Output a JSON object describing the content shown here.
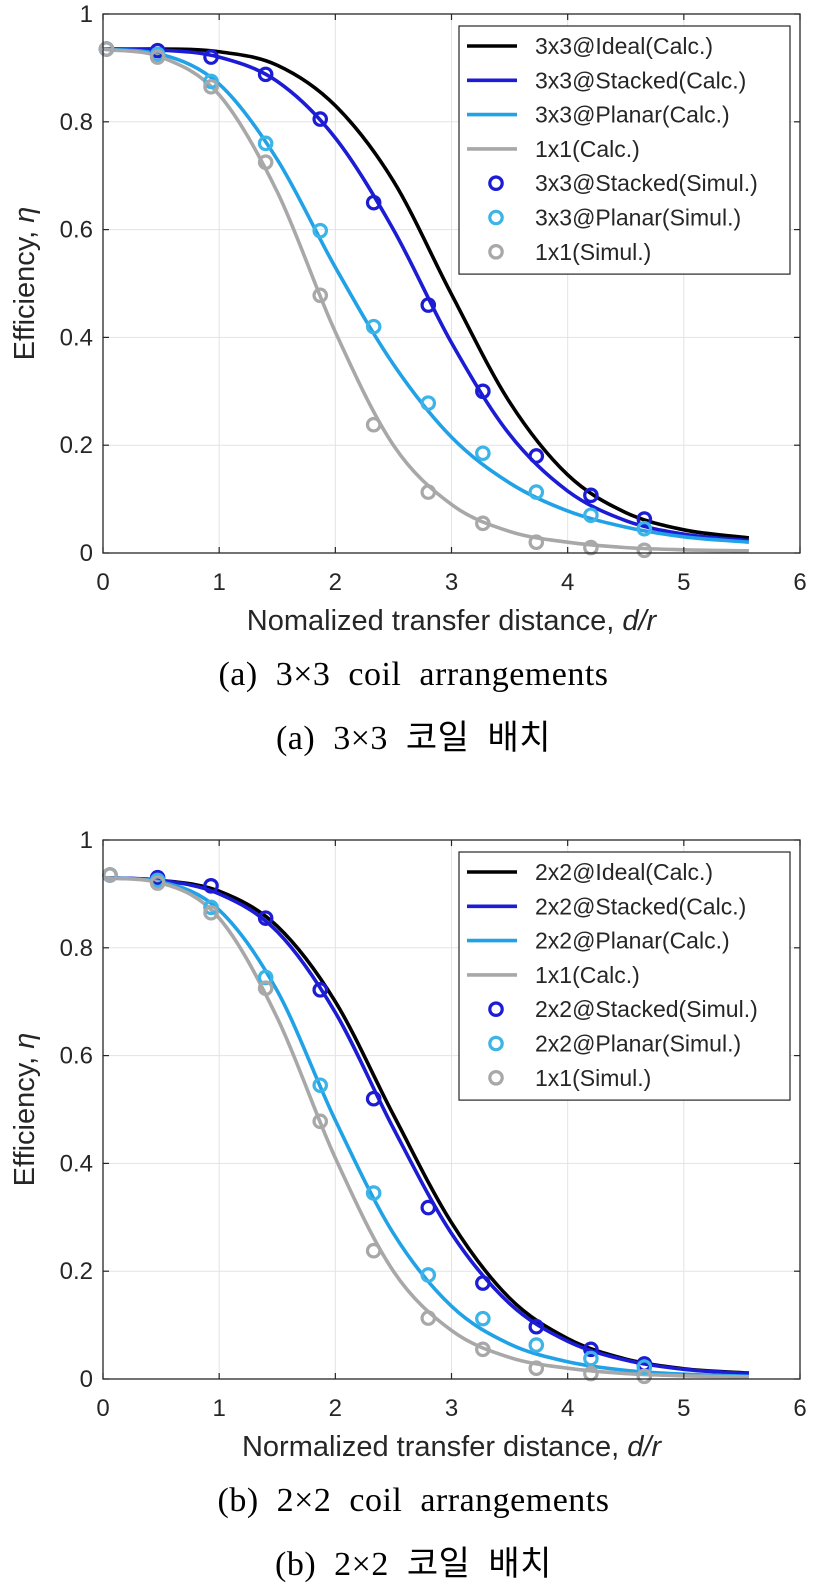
{
  "figures": [
    {
      "caption_en": "(a)  3×3  coil  arrangements",
      "caption_ko": "(a)  3×3  코일  배치",
      "chart_data": {
        "type": "line",
        "xlabel": "Nomalized transfer distance, ",
        "xlabel_italic": "d/r",
        "ylabel": "Efficiency, ",
        "ylabel_italic": "η",
        "xlim": [
          0,
          6
        ],
        "ylim": [
          0,
          1
        ],
        "xticks": [
          0,
          1,
          2,
          3,
          4,
          5,
          6
        ],
        "yticks": [
          0,
          0.2,
          0.4,
          0.6,
          0.8,
          1
        ],
        "ytick_labels": [
          "0",
          "0.2",
          "0.4",
          "0.6",
          "0.8",
          "1"
        ],
        "grid": true,
        "legend_position": "top-right",
        "series": [
          {
            "name": "3x3@Ideal(Calc.)",
            "kind": "line",
            "color": "#000000",
            "x": [
              0,
              0.5,
              1,
              1.5,
              2,
              2.5,
              3,
              3.5,
              4,
              4.5,
              5,
              5.56
            ],
            "y": [
              0.935,
              0.935,
              0.93,
              0.905,
              0.83,
              0.69,
              0.48,
              0.28,
              0.145,
              0.075,
              0.043,
              0.028
            ]
          },
          {
            "name": "3x3@Stacked(Calc.)",
            "kind": "line",
            "color": "#1c1cd4",
            "x": [
              0,
              0.5,
              1,
              1.5,
              2,
              2.5,
              3,
              3.5,
              4,
              4.5,
              5,
              5.56
            ],
            "y": [
              0.935,
              0.933,
              0.92,
              0.875,
              0.77,
              0.6,
              0.39,
              0.22,
              0.115,
              0.06,
              0.035,
              0.023
            ]
          },
          {
            "name": "3x3@Planar(Calc.)",
            "kind": "line",
            "color": "#22a2e6",
            "x": [
              0,
              0.5,
              1,
              1.5,
              2,
              2.5,
              3,
              3.5,
              4,
              4.5,
              5,
              5.56
            ],
            "y": [
              0.935,
              0.925,
              0.87,
              0.73,
              0.53,
              0.35,
              0.215,
              0.13,
              0.078,
              0.048,
              0.03,
              0.02
            ]
          },
          {
            "name": "1x1(Calc.)",
            "kind": "line",
            "color": "#a8a8a8",
            "x": [
              0,
              0.5,
              1,
              1.5,
              2,
              2.5,
              3,
              3.5,
              4,
              4.5,
              5,
              5.56
            ],
            "y": [
              0.935,
              0.92,
              0.85,
              0.67,
              0.41,
              0.2,
              0.09,
              0.04,
              0.02,
              0.01,
              0.006,
              0.004
            ]
          },
          {
            "name": "3x3@Stacked(Simul.)",
            "kind": "marker",
            "color": "#1c1cd4",
            "x": [
              0.03,
              0.47,
              0.93,
              1.4,
              1.87,
              2.33,
              2.8,
              3.27,
              3.73,
              4.2,
              4.66
            ],
            "y": [
              0.935,
              0.932,
              0.92,
              0.888,
              0.805,
              0.65,
              0.46,
              0.3,
              0.18,
              0.107,
              0.063
            ]
          },
          {
            "name": "3x3@Planar(Simul.)",
            "kind": "marker",
            "color": "#3cb4e8",
            "x": [
              0.03,
              0.47,
              0.93,
              1.4,
              1.87,
              2.33,
              2.8,
              3.27,
              3.73,
              4.2,
              4.66
            ],
            "y": [
              0.935,
              0.925,
              0.875,
              0.76,
              0.598,
              0.42,
              0.278,
              0.185,
              0.113,
              0.07,
              0.045
            ]
          },
          {
            "name": "1x1(Simul.)",
            "kind": "marker",
            "color": "#a8a8a8",
            "x": [
              0.03,
              0.47,
              0.93,
              1.4,
              1.87,
              2.33,
              2.8,
              3.27,
              3.73,
              4.2,
              4.66
            ],
            "y": [
              0.935,
              0.92,
              0.865,
              0.725,
              0.478,
              0.238,
              0.113,
              0.055,
              0.02,
              0.01,
              0.005
            ]
          }
        ]
      }
    },
    {
      "caption_en": "(b)  2×2  coil  arrangements",
      "caption_ko": "(b)  2×2  코일  배치",
      "chart_data": {
        "type": "line",
        "xlabel": "Normalized transfer distance, ",
        "xlabel_italic": "d/r",
        "ylabel": "Efficiency, ",
        "ylabel_italic": "η",
        "xlim": [
          0,
          6
        ],
        "ylim": [
          0,
          1
        ],
        "xticks": [
          0,
          1,
          2,
          3,
          4,
          5,
          6
        ],
        "yticks": [
          0,
          0.2,
          0.4,
          0.6,
          0.8,
          1
        ],
        "ytick_labels": [
          "0",
          "0.2",
          "0.4",
          "0.6",
          "0.8",
          "1"
        ],
        "grid": true,
        "legend_position": "top-right",
        "series": [
          {
            "name": "2x2@Ideal(Calc.)",
            "kind": "line",
            "color": "#000000",
            "x": [
              0,
              0.5,
              1,
              1.5,
              2,
              2.5,
              3,
              3.5,
              4,
              4.5,
              5,
              5.56
            ],
            "y": [
              0.93,
              0.925,
              0.905,
              0.84,
              0.7,
              0.49,
              0.29,
              0.15,
              0.075,
              0.037,
              0.019,
              0.011
            ]
          },
          {
            "name": "2x2@Stacked(Calc.)",
            "kind": "line",
            "color": "#1c1cd4",
            "x": [
              0,
              0.5,
              1,
              1.5,
              2,
              2.5,
              3,
              3.5,
              4,
              4.5,
              5,
              5.56
            ],
            "y": [
              0.93,
              0.925,
              0.9,
              0.83,
              0.68,
              0.465,
              0.27,
              0.14,
              0.07,
              0.035,
              0.018,
              0.01
            ]
          },
          {
            "name": "2x2@Planar(Calc.)",
            "kind": "line",
            "color": "#22a2e6",
            "x": [
              0,
              0.5,
              1,
              1.5,
              2,
              2.5,
              3,
              3.5,
              4,
              4.5,
              5,
              5.56
            ],
            "y": [
              0.93,
              0.922,
              0.87,
              0.72,
              0.48,
              0.27,
              0.135,
              0.065,
              0.032,
              0.016,
              0.009,
              0.005
            ]
          },
          {
            "name": "1x1(Calc.)",
            "kind": "line",
            "color": "#a8a8a8",
            "x": [
              0,
              0.5,
              1,
              1.5,
              2,
              2.5,
              3,
              3.5,
              4,
              4.5,
              5,
              5.56
            ],
            "y": [
              0.93,
              0.92,
              0.855,
              0.67,
              0.41,
              0.2,
              0.09,
              0.04,
              0.02,
              0.01,
              0.006,
              0.004
            ]
          },
          {
            "name": "2x2@Stacked(Simul.)",
            "kind": "marker",
            "color": "#1c1cd4",
            "x": [
              0.06,
              0.47,
              0.93,
              1.4,
              1.87,
              2.33,
              2.8,
              3.27,
              3.73,
              4.2,
              4.66
            ],
            "y": [
              0.935,
              0.93,
              0.915,
              0.855,
              0.722,
              0.52,
              0.318,
              0.178,
              0.097,
              0.055,
              0.028
            ]
          },
          {
            "name": "2x2@Planar(Simul.)",
            "kind": "marker",
            "color": "#3cb4e8",
            "x": [
              0.06,
              0.47,
              0.93,
              1.4,
              1.87,
              2.33,
              2.8,
              3.27,
              3.73,
              4.2,
              4.66
            ],
            "y": [
              0.935,
              0.925,
              0.875,
              0.745,
              0.545,
              0.345,
              0.193,
              0.112,
              0.063,
              0.038,
              0.022
            ]
          },
          {
            "name": "1x1(Simul.)",
            "kind": "marker",
            "color": "#a8a8a8",
            "x": [
              0.06,
              0.47,
              0.93,
              1.4,
              1.87,
              2.33,
              2.8,
              3.27,
              3.73,
              4.2,
              4.66
            ],
            "y": [
              0.935,
              0.92,
              0.865,
              0.725,
              0.478,
              0.238,
              0.113,
              0.055,
              0.02,
              0.01,
              0.005
            ]
          }
        ]
      }
    }
  ]
}
